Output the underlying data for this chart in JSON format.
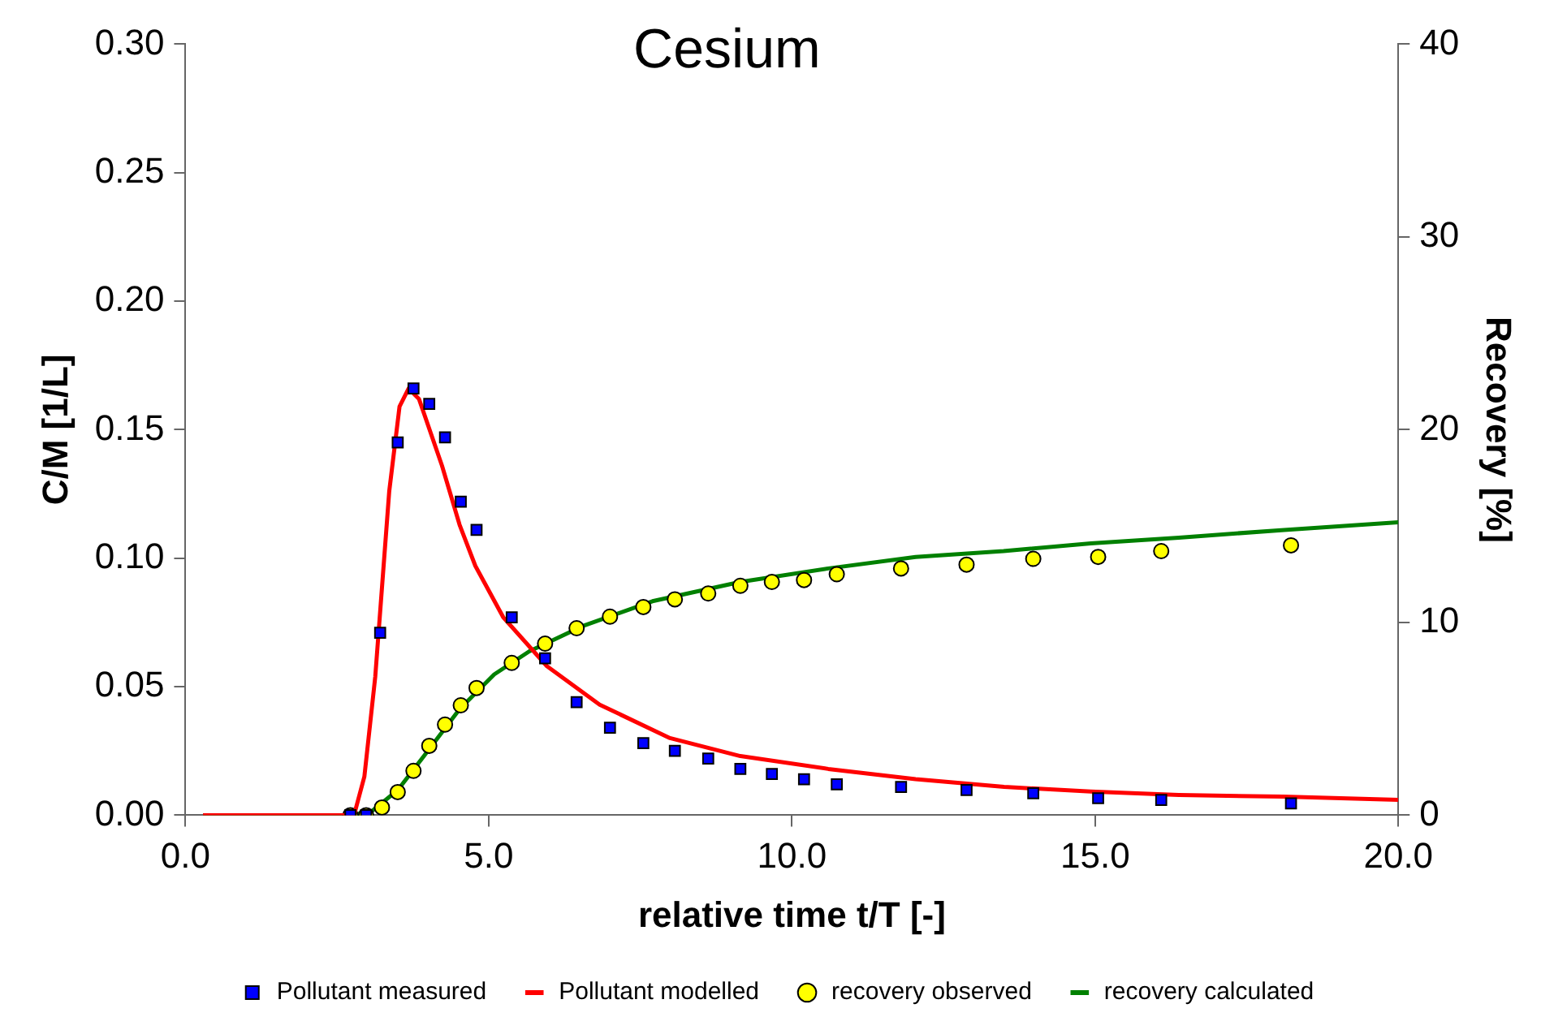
{
  "chart_data": {
    "type": "scatter",
    "title": "Cesium",
    "xlabel": "relative time t/T [-]",
    "ylabel": "C/M [1/L]",
    "y2label": "Recovery [%]",
    "xlim": [
      0,
      20
    ],
    "xticks": [
      {
        "value": 0,
        "label": "0.0"
      },
      {
        "value": 5,
        "label": "5.0"
      },
      {
        "value": 10,
        "label": "10.0"
      },
      {
        "value": 15,
        "label": "15.0"
      },
      {
        "value": 20,
        "label": "20.0"
      }
    ],
    "ylim": [
      0,
      0.3
    ],
    "yticks": [
      {
        "value": 0,
        "label": "0.00"
      },
      {
        "value": 0.05,
        "label": "0.05"
      },
      {
        "value": 0.1,
        "label": "0.10"
      },
      {
        "value": 0.15,
        "label": "0.15"
      },
      {
        "value": 0.2,
        "label": "0.20"
      },
      {
        "value": 0.25,
        "label": "0.25"
      },
      {
        "value": 0.3,
        "label": "0.30"
      }
    ],
    "y2lim": [
      0,
      40
    ],
    "y2ticks": [
      0,
      10,
      20,
      30,
      40
    ],
    "grid": false,
    "legend": "bottom",
    "series": [
      {
        "name": "Pollutant measured",
        "type": "scatter",
        "marker": "square",
        "color": "#0000ff",
        "x": [
          2.72,
          2.98,
          3.21,
          3.5,
          3.76,
          4.02,
          4.28,
          4.54,
          4.8,
          5.38,
          5.93,
          6.45,
          7.0,
          7.55,
          8.07,
          8.62,
          9.15,
          9.67,
          10.2,
          10.74,
          11.8,
          12.88,
          13.98,
          15.05,
          16.09,
          18.23
        ],
        "values": [
          0,
          0,
          0.071,
          0.145,
          0.166,
          0.16,
          0.147,
          0.122,
          0.111,
          0.077,
          0.061,
          0.044,
          0.034,
          0.028,
          0.025,
          0.022,
          0.018,
          0.016,
          0.014,
          0.012,
          0.011,
          0.0098,
          0.0085,
          0.0066,
          0.0059,
          0.0046
        ]
      },
      {
        "name": "Pollutant modelled",
        "type": "line",
        "marker": "none",
        "color": "#ff0000",
        "x": [
          0.29,
          2.78,
          2.95,
          3.13,
          3.36,
          3.53,
          3.68,
          3.85,
          4.23,
          4.52,
          4.78,
          5.24,
          5.96,
          6.83,
          7.99,
          9.15,
          10.6,
          12.04,
          13.5,
          14.93,
          16.38,
          18.1,
          20
        ],
        "values": [
          0,
          0,
          0.015,
          0.054,
          0.126,
          0.159,
          0.166,
          0.162,
          0.136,
          0.113,
          0.097,
          0.077,
          0.058,
          0.043,
          0.03,
          0.023,
          0.018,
          0.014,
          0.011,
          0.0092,
          0.0079,
          0.0072,
          0.006
        ]
      },
      {
        "name": "recovery observed",
        "type": "scatter",
        "marker": "circle",
        "color": "#ffff00",
        "axis": "y2",
        "x": [
          2.72,
          2.98,
          3.24,
          3.5,
          3.76,
          4.02,
          4.28,
          4.54,
          4.8,
          5.38,
          5.93,
          6.45,
          7.0,
          7.55,
          8.07,
          8.62,
          9.15,
          9.67,
          10.2,
          10.74,
          11.8,
          12.88,
          13.98,
          15.05,
          16.09,
          18.23
        ],
        "values": [
          0,
          0,
          0.4,
          1.2,
          2.3,
          3.6,
          4.7,
          5.7,
          6.6,
          7.9,
          8.9,
          9.7,
          10.3,
          10.8,
          11.2,
          11.5,
          11.9,
          12.1,
          12.2,
          12.5,
          12.8,
          13.0,
          13.3,
          13.4,
          13.7,
          14.0
        ]
      },
      {
        "name": "recovery calculated",
        "type": "line",
        "marker": "none",
        "color": "#008000",
        "axis": "y2",
        "x": [
          0.29,
          2.72,
          3.07,
          3.5,
          3.94,
          4.52,
          5.09,
          5.67,
          6.54,
          7.7,
          9.15,
          10.6,
          12.04,
          13.49,
          14.93,
          16.38,
          18.12,
          20
        ],
        "values": [
          0,
          0,
          0.2,
          1.3,
          3.1,
          5.5,
          7.3,
          8.5,
          9.8,
          11.1,
          12.1,
          12.8,
          13.4,
          13.7,
          14.1,
          14.4,
          14.8,
          15.2
        ]
      }
    ]
  }
}
